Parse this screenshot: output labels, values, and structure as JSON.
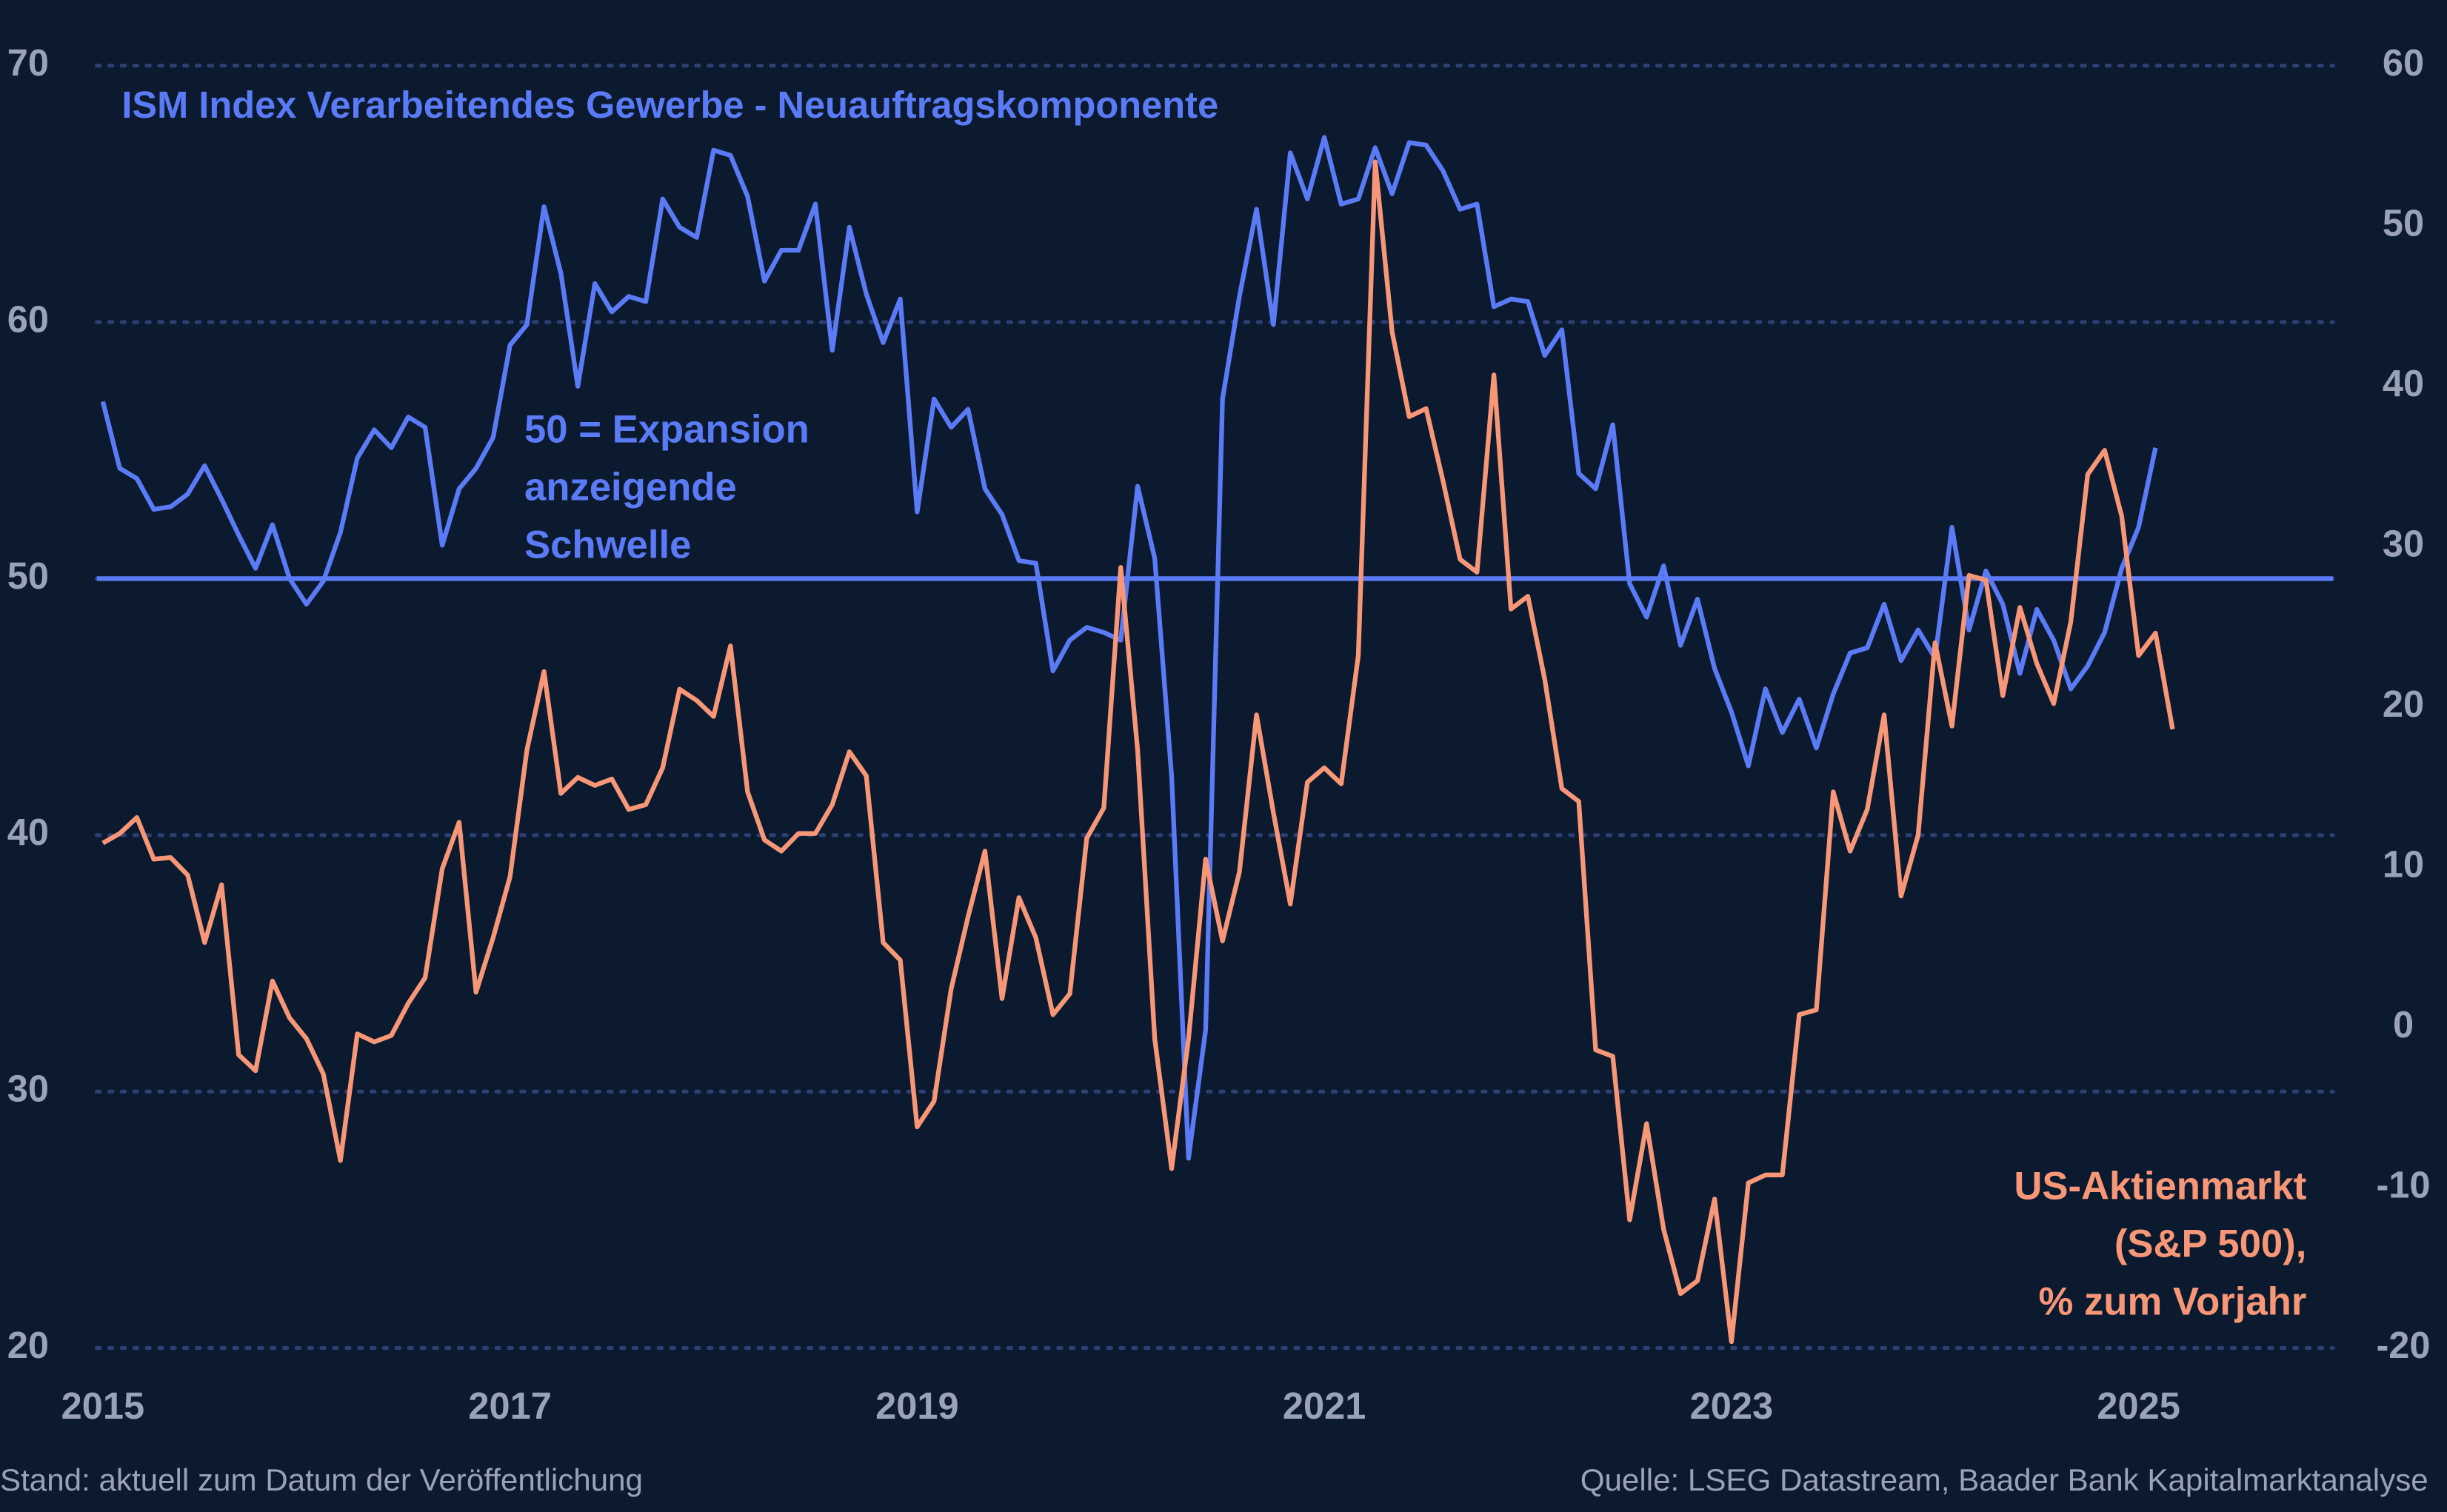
{
  "chart_data": {
    "type": "line",
    "x": [
      2015,
      2015.083,
      2015.167,
      2015.25,
      2015.333,
      2015.417,
      2015.5,
      2015.583,
      2015.667,
      2015.75,
      2015.833,
      2015.917,
      2016,
      2016.083,
      2016.167,
      2016.25,
      2016.333,
      2016.417,
      2016.5,
      2016.583,
      2016.667,
      2016.75,
      2016.833,
      2016.917,
      2017,
      2017.083,
      2017.167,
      2017.25,
      2017.333,
      2017.417,
      2017.5,
      2017.583,
      2017.667,
      2017.75,
      2017.833,
      2017.917,
      2018,
      2018.083,
      2018.167,
      2018.25,
      2018.333,
      2018.417,
      2018.5,
      2018.583,
      2018.667,
      2018.75,
      2018.833,
      2018.917,
      2019,
      2019.083,
      2019.167,
      2019.25,
      2019.333,
      2019.417,
      2019.5,
      2019.583,
      2019.667,
      2019.75,
      2019.833,
      2019.917,
      2020,
      2020.083,
      2020.167,
      2020.25,
      2020.333,
      2020.417,
      2020.5,
      2020.583,
      2020.667,
      2020.75,
      2020.833,
      2020.917,
      2021,
      2021.083,
      2021.167,
      2021.25,
      2021.333,
      2021.417,
      2021.5,
      2021.583,
      2021.667,
      2021.75,
      2021.833,
      2021.917,
      2022,
      2022.083,
      2022.167,
      2022.25,
      2022.333,
      2022.417,
      2022.5,
      2022.583,
      2022.667,
      2022.75,
      2022.833,
      2022.917,
      2023,
      2023.083,
      2023.167,
      2023.25,
      2023.333,
      2023.417,
      2023.5,
      2023.583,
      2023.667,
      2023.75,
      2023.833,
      2023.917,
      2024,
      2024.083,
      2024.167,
      2024.25,
      2024.333,
      2024.417,
      2024.5,
      2024.583,
      2024.667,
      2024.75,
      2024.833,
      2024.917,
      2025,
      2025.083,
      2025.167
    ],
    "series": [
      {
        "name": "ISM Index Verarbeitendes Gewerbe - Neuauftragskomponente",
        "color": "#5b7bf6",
        "axis": "y",
        "values": [
          56.9,
          54.3,
          53.9,
          52.7,
          52.8,
          53.3,
          54.4,
          53.1,
          51.7,
          50.4,
          52.1,
          50.0,
          49.0,
          49.9,
          51.8,
          54.7,
          55.8,
          55.1,
          56.3,
          55.9,
          51.3,
          53.5,
          54.3,
          55.5,
          59.1,
          59.9,
          64.5,
          61.9,
          57.5,
          61.5,
          60.4,
          61.0,
          60.8,
          64.8,
          63.7,
          63.3,
          66.7,
          66.5,
          64.9,
          61.6,
          62.8,
          62.8,
          64.6,
          58.9,
          63.7,
          61.1,
          59.2,
          60.9,
          52.6,
          57.0,
          55.9,
          56.6,
          53.5,
          52.5,
          50.7,
          50.6,
          46.4,
          47.6,
          48.1,
          47.9,
          47.6,
          53.6,
          50.8,
          42.3,
          27.4,
          32.4,
          57.0,
          61.0,
          64.4,
          59.9,
          66.6,
          64.8,
          67.2,
          64.6,
          64.8,
          66.8,
          65.0,
          67.0,
          66.9,
          65.9,
          64.4,
          64.6,
          60.6,
          60.9,
          60.8,
          58.7,
          59.7,
          54.1,
          53.5,
          56.0,
          49.8,
          48.5,
          50.5,
          47.4,
          49.2,
          46.5,
          44.8,
          42.7,
          45.7,
          44.0,
          45.3,
          43.4,
          45.5,
          47.1,
          47.3,
          49.0,
          46.8,
          48.0,
          46.9,
          52.0,
          48.0,
          50.3,
          49.0,
          46.3,
          48.8,
          47.6,
          45.7,
          46.6,
          47.9,
          50.4,
          52.0,
          55.1,
          null
        ]
      },
      {
        "name_lines": [
          "US-Aktienmarkt",
          "(S&P 500),",
          "% zum Vorjahr"
        ],
        "color": "#f79777",
        "axis": "y2",
        "values": [
          11.5,
          12.1,
          13.1,
          10.5,
          10.6,
          9.5,
          5.3,
          8.9,
          -1.7,
          -2.7,
          2.9,
          0.6,
          -0.7,
          -2.9,
          -8.3,
          -0.4,
          -0.9,
          -0.5,
          1.5,
          3.1,
          9.9,
          12.8,
          2.2,
          5.6,
          9.4,
          17.3,
          22.2,
          14.6,
          15.6,
          15.1,
          15.5,
          13.6,
          13.9,
          16.2,
          21.1,
          20.4,
          19.4,
          23.8,
          14.7,
          11.7,
          11.0,
          12.1,
          12.1,
          13.9,
          17.2,
          15.7,
          5.3,
          4.2,
          -6.2,
          -4.6,
          2.4,
          6.9,
          11.0,
          1.8,
          8.1,
          5.6,
          0.8,
          2.1,
          11.8,
          13.7,
          28.7,
          17.3,
          -0.7,
          -8.8,
          -0.7,
          10.5,
          5.4,
          9.7,
          19.5,
          13.4,
          7.7,
          15.3,
          16.2,
          15.2,
          23.2,
          54.0,
          43.4,
          38.1,
          38.6,
          34.1,
          29.2,
          28.4,
          40.7,
          26.1,
          26.9,
          21.7,
          14.9,
          14.1,
          -1.4,
          -1.8,
          -12.0,
          -6.0,
          -12.6,
          -16.6,
          -15.8,
          -10.7,
          -19.6,
          -9.7,
          -9.2,
          -9.2,
          0.8,
          1.1,
          14.7,
          11.0,
          13.6,
          19.5,
          8.2,
          12.0,
          24.0,
          18.8,
          28.2,
          27.9,
          20.7,
          26.2,
          22.7,
          20.2,
          25.3,
          34.5,
          36.0,
          31.9,
          23.2,
          24.6,
          18.6
        ]
      }
    ],
    "xlim": [
      2014.97,
      2025.94
    ],
    "xticks": [
      2015,
      2017,
      2019,
      2021,
      2023,
      2025
    ],
    "ylim": [
      20,
      70
    ],
    "yticks": [
      20,
      30,
      40,
      50,
      60,
      70
    ],
    "y2lim": [
      -20,
      60
    ],
    "y2ticks": [
      -20,
      -10,
      0,
      10,
      20,
      30,
      40,
      50,
      60
    ],
    "grid": true,
    "reference_line": {
      "value": 50,
      "color": "#5b7bf6"
    },
    "annotation_lines": [
      "50 = Expansion",
      "anzeigende",
      "Schwelle"
    ],
    "footer_left": "Stand: aktuell zum Datum der Veröffentlichung",
    "footer_right": "Quelle: LSEG Datastream, Baader Bank Kapitalmarktanalyse"
  }
}
